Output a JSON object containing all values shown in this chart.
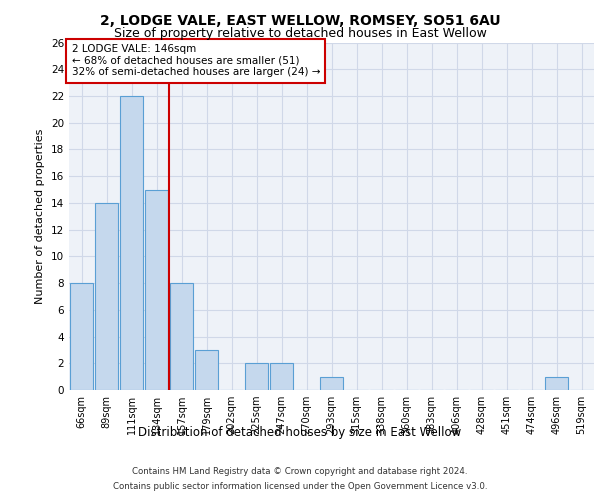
{
  "title1": "2, LODGE VALE, EAST WELLOW, ROMSEY, SO51 6AU",
  "title2": "Size of property relative to detached houses in East Wellow",
  "xlabel": "Distribution of detached houses by size in East Wellow",
  "ylabel": "Number of detached properties",
  "categories": [
    "66sqm",
    "89sqm",
    "111sqm",
    "134sqm",
    "157sqm",
    "179sqm",
    "202sqm",
    "225sqm",
    "247sqm",
    "270sqm",
    "293sqm",
    "315sqm",
    "338sqm",
    "360sqm",
    "383sqm",
    "406sqm",
    "428sqm",
    "451sqm",
    "474sqm",
    "496sqm",
    "519sqm"
  ],
  "values": [
    8,
    14,
    22,
    15,
    8,
    3,
    0,
    2,
    2,
    0,
    1,
    0,
    0,
    0,
    0,
    0,
    0,
    0,
    0,
    1,
    0
  ],
  "bar_color": "#c5d8ed",
  "bar_edge_color": "#5a9fd4",
  "grid_color": "#d0d8e8",
  "background_color": "#eef2f8",
  "red_line_x": 3.5,
  "annotation_box_text": "2 LODGE VALE: 146sqm\n← 68% of detached houses are smaller (51)\n32% of semi-detached houses are larger (24) →",
  "annotation_box_color": "#ffffff",
  "annotation_box_edge_color": "#cc0000",
  "footer_line1": "Contains HM Land Registry data © Crown copyright and database right 2024.",
  "footer_line2": "Contains public sector information licensed under the Open Government Licence v3.0.",
  "ylim": [
    0,
    26
  ],
  "yticks": [
    0,
    2,
    4,
    6,
    8,
    10,
    12,
    14,
    16,
    18,
    20,
    22,
    24,
    26
  ]
}
